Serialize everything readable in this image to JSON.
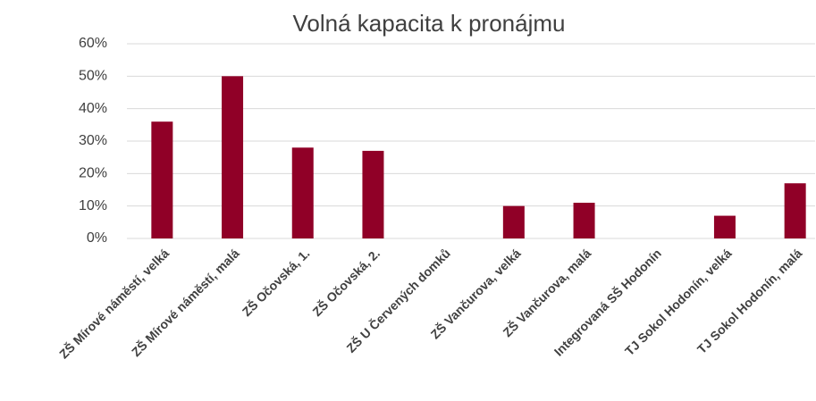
{
  "chart_data": {
    "type": "bar",
    "title": "Volná kapacita k pronájmu",
    "categories": [
      "ZŠ Mírové náměstí, velká",
      "ZŠ Mírové náměstí, malá",
      "ZŠ Očovská, 1.",
      "ZŠ Očovská, 2.",
      "ZŠ U Červených domků",
      "ZŠ Vančurova, velká",
      "ZŠ Vančurova, malá",
      "Integrovaná SŠ Hodonín",
      "TJ Sokol Hodonín, velká",
      "TJ Sokol Hodonín, malá"
    ],
    "values": [
      36,
      50,
      28,
      27,
      0,
      10,
      11,
      0,
      7,
      17
    ],
    "color": "#900027",
    "ylim": [
      0,
      60
    ],
    "yticks": [
      {
        "value": 0,
        "label": "0%"
      },
      {
        "value": 10,
        "label": "10%"
      },
      {
        "value": 20,
        "label": "20%"
      },
      {
        "value": 30,
        "label": "30%"
      },
      {
        "value": 40,
        "label": "40%"
      },
      {
        "value": 50,
        "label": "50%"
      },
      {
        "value": 60,
        "label": "60%"
      }
    ],
    "grid": true
  }
}
